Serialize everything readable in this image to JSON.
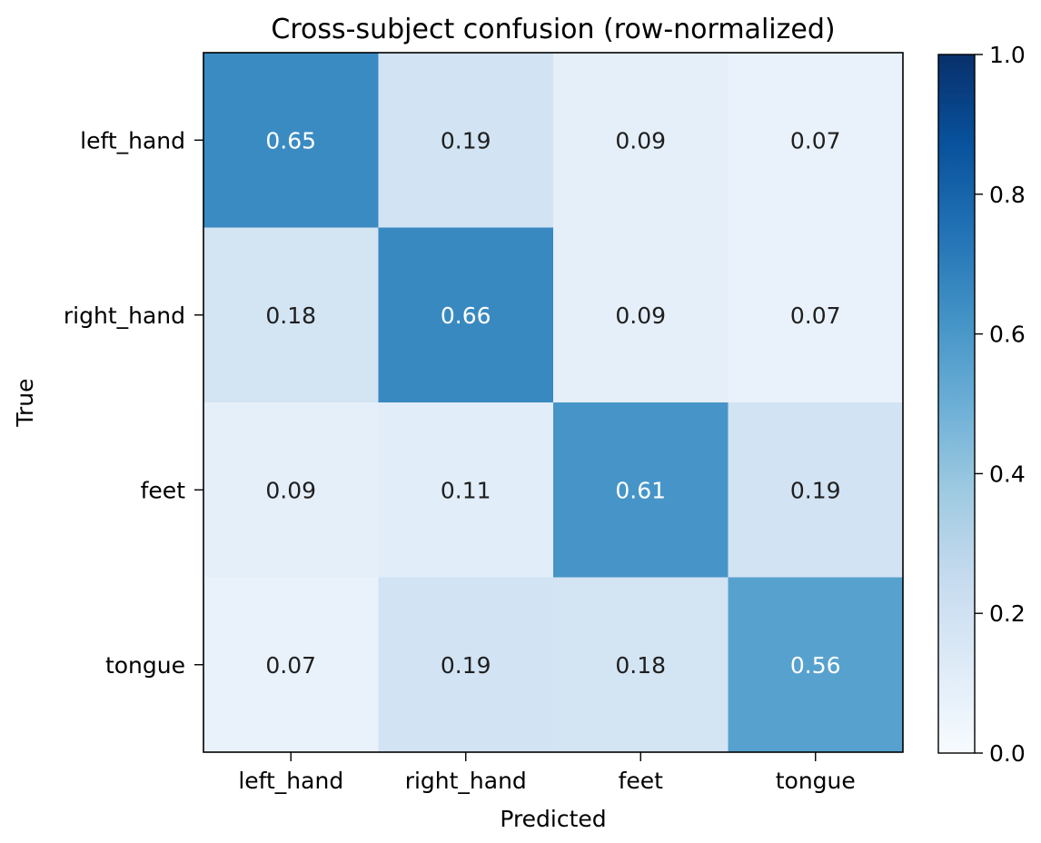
{
  "chart_data": {
    "type": "heatmap",
    "title": "Cross-subject confusion (row-normalized)",
    "xlabel": "Predicted",
    "ylabel": "True",
    "x_categories": [
      "left_hand",
      "right_hand",
      "feet",
      "tongue"
    ],
    "y_categories": [
      "left_hand",
      "right_hand",
      "feet",
      "tongue"
    ],
    "values": [
      [
        0.65,
        0.19,
        0.09,
        0.07
      ],
      [
        0.18,
        0.66,
        0.09,
        0.07
      ],
      [
        0.09,
        0.11,
        0.61,
        0.19
      ],
      [
        0.07,
        0.19,
        0.18,
        0.56
      ]
    ],
    "value_format": "2 decimals",
    "colormap": "Blues",
    "colorbar": {
      "vmin": 0.0,
      "vmax": 1.0,
      "ticks": [
        0.0,
        0.2,
        0.4,
        0.6,
        0.8,
        1.0
      ],
      "tick_labels": [
        "0.0",
        "0.2",
        "0.4",
        "0.6",
        "0.8",
        "1.0"
      ],
      "placement": "right"
    },
    "label_colors": {
      "dark": "#1f1f1f",
      "light": "#ffffff"
    },
    "grid": false
  }
}
